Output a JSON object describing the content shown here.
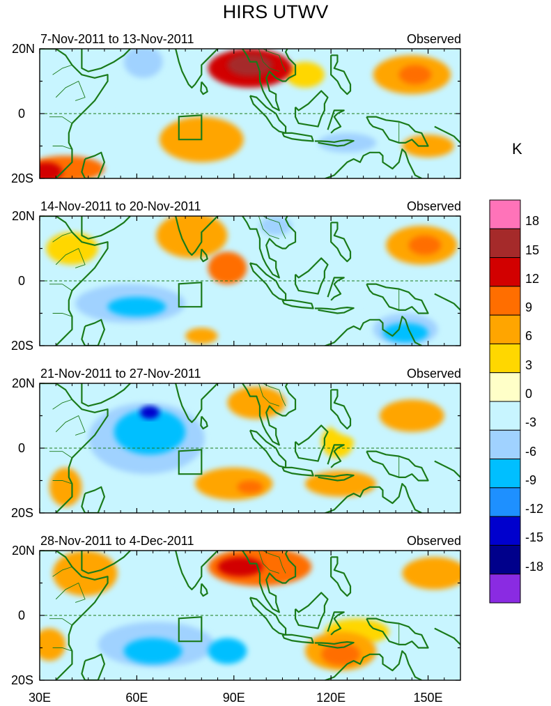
{
  "title": "HIRS UTWV",
  "units": "K",
  "colorbar": {
    "levels": [
      "18",
      "15",
      "12",
      "9",
      "6",
      "3",
      "0",
      "-3",
      "-6",
      "-9",
      "-12",
      "-15",
      "-18"
    ],
    "colors": [
      "#ff73b9",
      "#a52a2a",
      "#d20000",
      "#ff6e00",
      "#ffa500",
      "#ffd700",
      "#ffffc8",
      "#c8f5ff",
      "#a0d2ff",
      "#00bfff",
      "#1e90ff",
      "#0000cd",
      "#00008b",
      "#8a2be2"
    ]
  },
  "lon_labels": [
    "30E",
    "60E",
    "90E",
    "120E",
    "150E"
  ],
  "panels": [
    {
      "date": "7-Nov-2011 to 13-Nov-2011",
      "tag": "Observed",
      "lat_top": "20N",
      "lat_mid": "0",
      "lat_bot": "20S",
      "blobs": [
        {
          "lon": 95,
          "lat": 14,
          "rx": 13,
          "ry": 6,
          "level": 4
        },
        {
          "lon": 95,
          "lat": 15,
          "rx": 7,
          "ry": 3.5,
          "level": 5
        },
        {
          "lon": 145,
          "lat": 12,
          "rx": 12,
          "ry": 6,
          "level": 2
        },
        {
          "lon": 146,
          "lat": 12,
          "rx": 5,
          "ry": 3,
          "level": 3
        },
        {
          "lon": 80,
          "lat": -8,
          "rx": 13,
          "ry": 7,
          "level": 2
        },
        {
          "lon": 38,
          "lat": -17,
          "rx": 12,
          "ry": 4,
          "level": 3
        },
        {
          "lon": 32,
          "lat": -18,
          "rx": 5,
          "ry": 3,
          "level": 4
        },
        {
          "lon": 62,
          "lat": 16,
          "rx": 6,
          "ry": 5,
          "level": -2
        },
        {
          "lon": 125,
          "lat": -9,
          "rx": 9,
          "ry": 3,
          "level": -2
        },
        {
          "lon": 150,
          "lat": -10,
          "rx": 8,
          "ry": 3.5,
          "level": 2
        },
        {
          "lon": 50,
          "lat": -6,
          "rx": 14,
          "ry": 6,
          "level": -1
        },
        {
          "lon": 125,
          "lat": 10,
          "rx": 10,
          "ry": 5,
          "level": -1
        },
        {
          "lon": 112,
          "lat": 12,
          "rx": 6,
          "ry": 4,
          "level": 1
        }
      ]
    },
    {
      "date": "14-Nov-2011 to 20-Nov-2011",
      "tag": "Observed",
      "lat_top": "20N",
      "lat_mid": "0",
      "lat_bot": "20S",
      "blobs": [
        {
          "lon": 77,
          "lat": 14,
          "rx": 11,
          "ry": 7,
          "level": 2
        },
        {
          "lon": 88,
          "lat": 4,
          "rx": 6,
          "ry": 5,
          "level": 3
        },
        {
          "lon": 148,
          "lat": 11,
          "rx": 11,
          "ry": 6,
          "level": 2
        },
        {
          "lon": 149,
          "lat": 11,
          "rx": 5,
          "ry": 3,
          "level": 3
        },
        {
          "lon": 58,
          "lat": -7,
          "rx": 17,
          "ry": 6,
          "level": -2
        },
        {
          "lon": 60,
          "lat": -8,
          "rx": 9,
          "ry": 3,
          "level": -3
        },
        {
          "lon": 143,
          "lat": -15,
          "rx": 10,
          "ry": 5,
          "level": -2
        },
        {
          "lon": 143,
          "lat": -16,
          "rx": 7,
          "ry": 3,
          "level": -3
        },
        {
          "lon": 118,
          "lat": -4,
          "rx": 12,
          "ry": 6,
          "level": -1
        },
        {
          "lon": 103,
          "lat": 17,
          "rx": 5,
          "ry": 3,
          "level": -2
        },
        {
          "lon": 40,
          "lat": 10,
          "rx": 8,
          "ry": 5,
          "level": 1
        },
        {
          "lon": 80,
          "lat": -17,
          "rx": 5,
          "ry": 2.5,
          "level": 2
        }
      ]
    },
    {
      "date": "21-Nov-2011 to 27-Nov-2011",
      "tag": "Observed",
      "lat_top": "20N",
      "lat_mid": "0",
      "lat_bot": "20S",
      "blobs": [
        {
          "lon": 63,
          "lat": 3,
          "rx": 18,
          "ry": 11,
          "level": -2
        },
        {
          "lon": 64,
          "lat": 5,
          "rx": 11,
          "ry": 7,
          "level": -3
        },
        {
          "lon": 64,
          "lat": 11,
          "rx": 3,
          "ry": 2,
          "level": -5
        },
        {
          "lon": 97,
          "lat": 14,
          "rx": 9,
          "ry": 5,
          "level": 2
        },
        {
          "lon": 145,
          "lat": 10,
          "rx": 10,
          "ry": 5,
          "level": 2
        },
        {
          "lon": 90,
          "lat": -11,
          "rx": 12,
          "ry": 5,
          "level": 2
        },
        {
          "lon": 95,
          "lat": -12,
          "rx": 4,
          "ry": 2,
          "level": 3
        },
        {
          "lon": 123,
          "lat": -11,
          "rx": 11,
          "ry": 4,
          "level": 2
        },
        {
          "lon": 38,
          "lat": -12,
          "rx": 5,
          "ry": 6,
          "level": 2
        },
        {
          "lon": 122,
          "lat": 2,
          "rx": 5,
          "ry": 5,
          "level": 1
        },
        {
          "lon": 130,
          "lat": 8,
          "rx": 10,
          "ry": 5,
          "level": -1
        }
      ]
    },
    {
      "date": "28-Nov-2011 to 4-Dec-2011",
      "tag": "Observed",
      "lat_top": "20N",
      "lat_mid": "0",
      "lat_bot": "20S",
      "blobs": [
        {
          "lon": 98,
          "lat": 15,
          "rx": 16,
          "ry": 6,
          "level": 3
        },
        {
          "lon": 92,
          "lat": 15,
          "rx": 7,
          "ry": 3,
          "level": 4
        },
        {
          "lon": 44,
          "lat": 13,
          "rx": 10,
          "ry": 7,
          "level": 2
        },
        {
          "lon": 152,
          "lat": 13,
          "rx": 10,
          "ry": 5,
          "level": 2
        },
        {
          "lon": 66,
          "lat": -9,
          "rx": 18,
          "ry": 7,
          "level": -2
        },
        {
          "lon": 65,
          "lat": -11,
          "rx": 9,
          "ry": 4,
          "level": -3
        },
        {
          "lon": 88,
          "lat": -11,
          "rx": 6,
          "ry": 4,
          "level": -3
        },
        {
          "lon": 123,
          "lat": -11,
          "rx": 11,
          "ry": 6,
          "level": 2
        },
        {
          "lon": 123,
          "lat": -12,
          "rx": 6,
          "ry": 3.5,
          "level": 3
        },
        {
          "lon": 128,
          "lat": -5,
          "rx": 10,
          "ry": 4,
          "level": 1
        },
        {
          "lon": 33,
          "lat": -9,
          "rx": 5,
          "ry": 5,
          "level": 2
        },
        {
          "lon": 60,
          "lat": 4,
          "rx": 12,
          "ry": 6,
          "level": -1
        }
      ]
    }
  ]
}
